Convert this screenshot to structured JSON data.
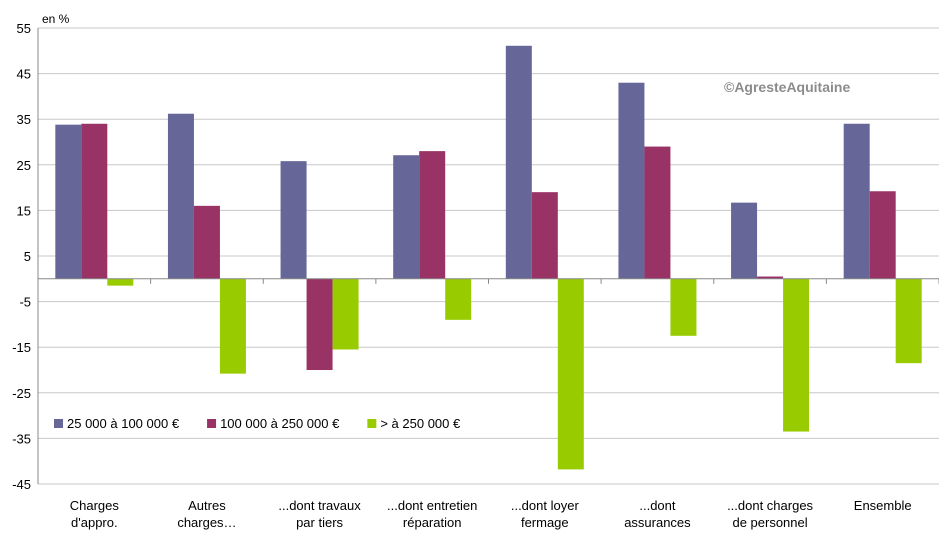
{
  "chart_data": {
    "type": "bar",
    "ylabel": "en %",
    "ylim": [
      -45,
      55
    ],
    "yticks": [
      55,
      45,
      35,
      25,
      15,
      5,
      -5,
      -15,
      -25,
      -35,
      -45
    ],
    "grid": true,
    "legend_position": "bottom-left",
    "watermark": "©AgresteAquitaine",
    "categories": [
      [
        "Charges",
        "d'appro."
      ],
      [
        "Autres",
        "charges…"
      ],
      [
        "...dont travaux",
        "par tiers"
      ],
      [
        "...dont entretien",
        "réparation"
      ],
      [
        "...dont loyer",
        "fermage"
      ],
      [
        "...dont",
        "assurances"
      ],
      [
        "...dont charges",
        "de personnel"
      ],
      [
        "Ensemble"
      ]
    ],
    "series": [
      {
        "name": "25 000 à 100 000 €",
        "color": "#666699",
        "values": [
          33.8,
          36.2,
          25.8,
          27.1,
          51.1,
          43.0,
          16.7,
          34.0
        ]
      },
      {
        "name": "100 000  à 250 000 €",
        "color": "#993366",
        "values": [
          34.0,
          16.0,
          -20.0,
          28.0,
          19.0,
          29.0,
          0.5,
          19.2
        ]
      },
      {
        "name": "> à 250 000 €",
        "color": "#99cc00",
        "values": [
          -1.5,
          -20.8,
          -15.5,
          -9.0,
          -41.8,
          -12.5,
          -33.5,
          -18.5
        ]
      }
    ]
  }
}
